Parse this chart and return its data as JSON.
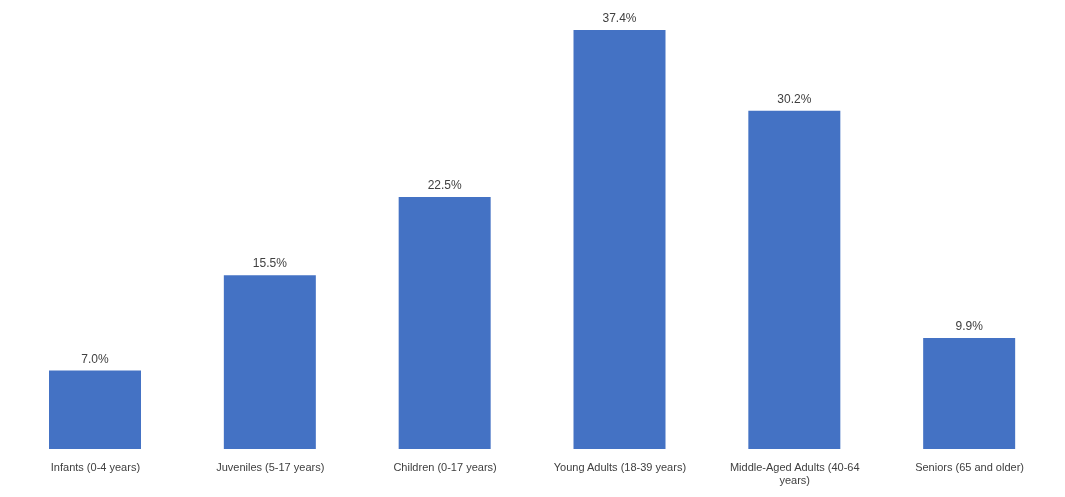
{
  "chart_data": {
    "type": "bar",
    "categories": [
      "Infants (0-4 years)",
      "Juveniles (5-17 years)",
      "Children (0-17 years)",
      "Young Adults (18-39 years)",
      "Middle-Aged Adults (40-64 years)",
      "Seniors (65 and older)"
    ],
    "values": [
      7.0,
      15.5,
      22.5,
      37.4,
      30.2,
      9.9
    ],
    "value_labels": [
      "7.0%",
      "15.5%",
      "22.5%",
      "37.4%",
      "30.2%",
      "9.9%"
    ],
    "color": "#4472c4",
    "grid": false,
    "legend": false
  }
}
